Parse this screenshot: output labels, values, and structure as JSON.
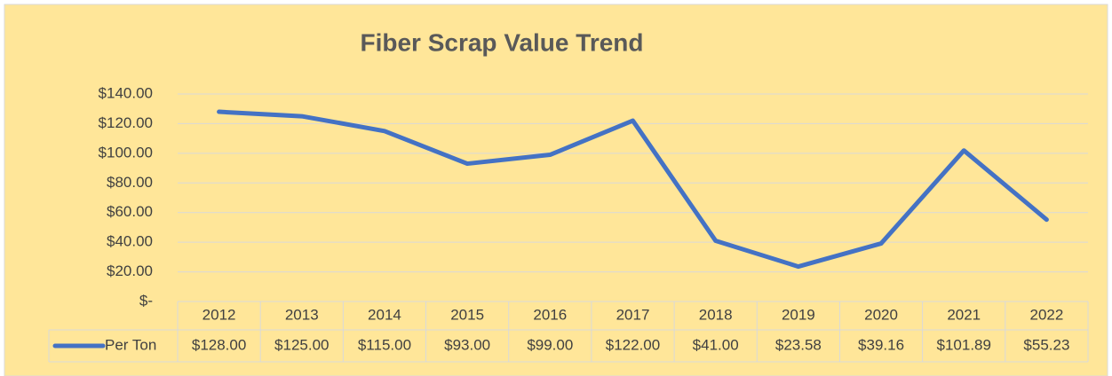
{
  "chart_data": {
    "type": "line",
    "title": "Fiber Scrap Value Trend",
    "categories": [
      "2012",
      "2013",
      "2014",
      "2015",
      "2016",
      "2017",
      "2018",
      "2019",
      "2020",
      "2021",
      "2022"
    ],
    "series": [
      {
        "name": "Per Ton",
        "color": "#4472c4",
        "values": [
          128,
          125,
          115,
          93,
          99,
          122,
          41,
          23.58,
          39.16,
          101.89,
          55.23
        ],
        "value_labels": [
          "$128.00",
          "$125.00",
          "$115.00",
          "$93.00",
          "$99.00",
          "$122.00",
          "$41.00",
          "$23.58",
          "$39.16",
          "$101.89",
          "$55.23"
        ]
      }
    ],
    "ylim": [
      0,
      140
    ],
    "yticks": [
      {
        "value": 0,
        "label": "$-"
      },
      {
        "value": 20,
        "label": "$20.00"
      },
      {
        "value": 40,
        "label": "$40.00"
      },
      {
        "value": 60,
        "label": "$60.00"
      },
      {
        "value": 80,
        "label": "$80.00"
      },
      {
        "value": 100,
        "label": "$100.00"
      },
      {
        "value": 120,
        "label": "$120.00"
      },
      {
        "value": 140,
        "label": "$140.00"
      }
    ],
    "grid": true,
    "data_table": true
  }
}
